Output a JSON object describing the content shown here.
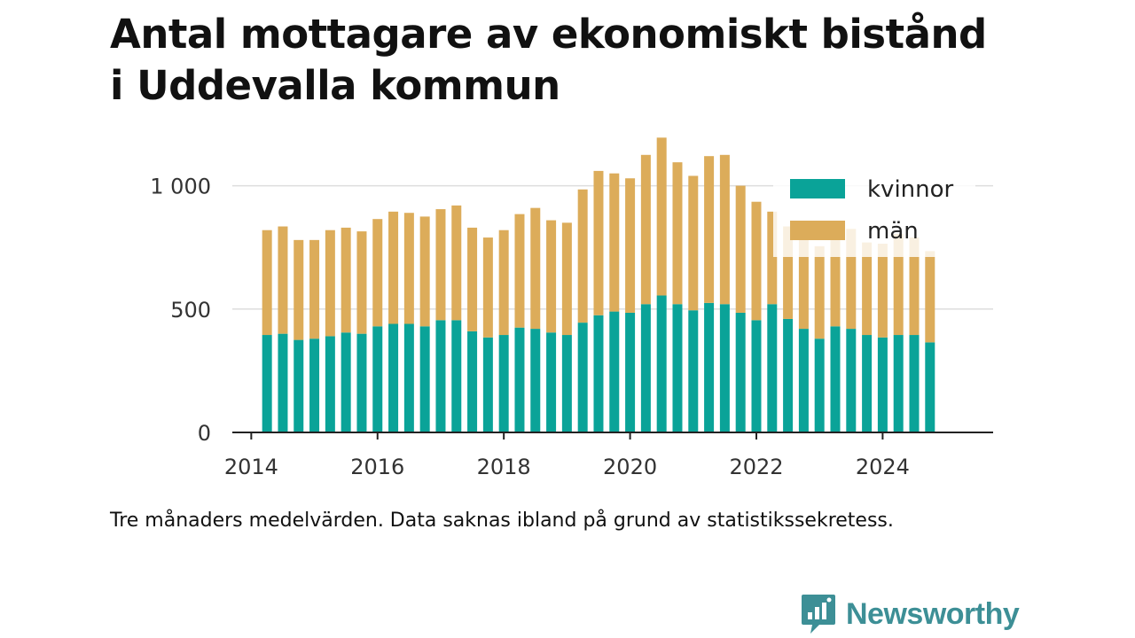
{
  "title_line1": "Antal mottagare av ekonomiskt bistånd",
  "title_line2": "i Uddevalla kommun",
  "caption": "Tre månaders medelvärden. Data saknas ibland på grund av statistikssekretess.",
  "brand": {
    "name": "Newsworthy",
    "icon": "newsworthy-logo-icon",
    "color": "#3d8f96"
  },
  "chart_data": {
    "type": "bar",
    "stacked": true,
    "x_start": 2014.25,
    "x_step": 0.25,
    "xlim": [
      2013.7,
      2025.75
    ],
    "ylim": [
      0,
      1250
    ],
    "x_ticks": [
      2014,
      2016,
      2018,
      2020,
      2022,
      2024
    ],
    "x_tick_labels": [
      "2014",
      "2016",
      "2018",
      "2020",
      "2022",
      "2024"
    ],
    "y_ticks": [
      0,
      500,
      1000
    ],
    "y_tick_labels": [
      "0",
      "500",
      "1 000"
    ],
    "grid": true,
    "legend_position": "top-right",
    "series": [
      {
        "name": "kvinnor",
        "color": "#0aa398",
        "values": [
          395,
          400,
          375,
          380,
          390,
          405,
          400,
          430,
          440,
          440,
          430,
          455,
          455,
          410,
          385,
          395,
          425,
          420,
          405,
          395,
          445,
          475,
          490,
          485,
          520,
          555,
          520,
          495,
          525,
          520,
          485,
          455,
          520,
          460,
          420,
          380,
          430,
          420,
          395,
          385,
          395,
          395,
          365
        ]
      },
      {
        "name": "män",
        "color": "#dcac5a",
        "values": [
          425,
          435,
          405,
          400,
          430,
          425,
          415,
          435,
          455,
          450,
          445,
          450,
          465,
          420,
          405,
          425,
          460,
          490,
          455,
          455,
          540,
          585,
          560,
          545,
          605,
          640,
          575,
          545,
          595,
          605,
          515,
          480,
          375,
          375,
          410,
          375,
          415,
          405,
          375,
          380,
          410,
          395,
          370
        ]
      }
    ]
  }
}
